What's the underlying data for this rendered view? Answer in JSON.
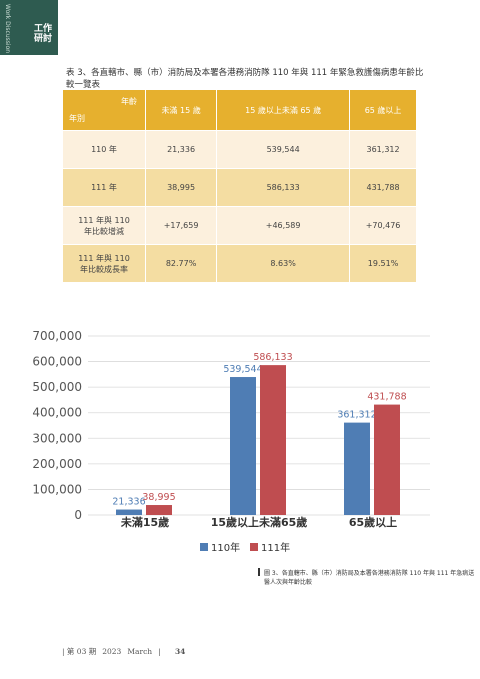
{
  "header": {
    "section_en": "Work Discussion",
    "section": "工作研討"
  },
  "table": {
    "title": "表 3、各直轄市、縣（市）消防局及本署各港務消防隊 110 年與 111 年緊急救護傷病患年齡比較一覽表",
    "corner_top": "年齡",
    "corner_bottom": "年別",
    "columns": [
      "未滿 15 歲",
      "15 歲以上未滿 65 歲",
      "65 歲以上"
    ],
    "rows": [
      [
        "110 年",
        "21,336",
        "539,544",
        "361,312"
      ],
      [
        "111 年",
        "38,995",
        "586,133",
        "431,788"
      ],
      [
        "111 年與 110 年比較增減",
        "+17,659",
        "+46,589",
        "+70,476"
      ],
      [
        "111 年與 110 年比較成長率",
        "82.77%",
        "8.63%",
        "19.51%"
      ]
    ]
  },
  "chart_data": {
    "type": "bar",
    "categories": [
      "未滿15歲",
      "15歲以上未滿65歲",
      "65歲以上"
    ],
    "series": [
      {
        "name": "110年",
        "color": "#4f7db4",
        "values": [
          21336,
          539544,
          361312
        ],
        "value_labels": [
          "21,336",
          "539,544",
          "361,312"
        ]
      },
      {
        "name": "111年",
        "color": "#bf4d50",
        "values": [
          38995,
          586133,
          431788
        ],
        "value_labels": [
          "38,995",
          "586,133",
          "431,788"
        ]
      }
    ],
    "ylim": [
      0,
      700000
    ],
    "yticks": [
      0,
      {
        "value": 100000,
        "label": "100,000"
      },
      {
        "value": 200000,
        "label": "200,000"
      },
      {
        "value": 300000,
        "label": "300,000"
      },
      {
        "value": 400000,
        "label": "400,000"
      },
      {
        "value": 500000,
        "label": "500,000"
      },
      {
        "value": 600000,
        "label": "600,000"
      },
      {
        "value": 700000,
        "label": "700,000"
      }
    ],
    "grid": true,
    "legend": "bottom"
  },
  "caption": "圖 3、各直轄市、縣（市）消防局及本署各港務消防隊 110 年與 111 年急病送醫人次與年齡比較",
  "footer": {
    "issue": "第 03 期",
    "year": "2023",
    "month": "March",
    "page": "34"
  }
}
